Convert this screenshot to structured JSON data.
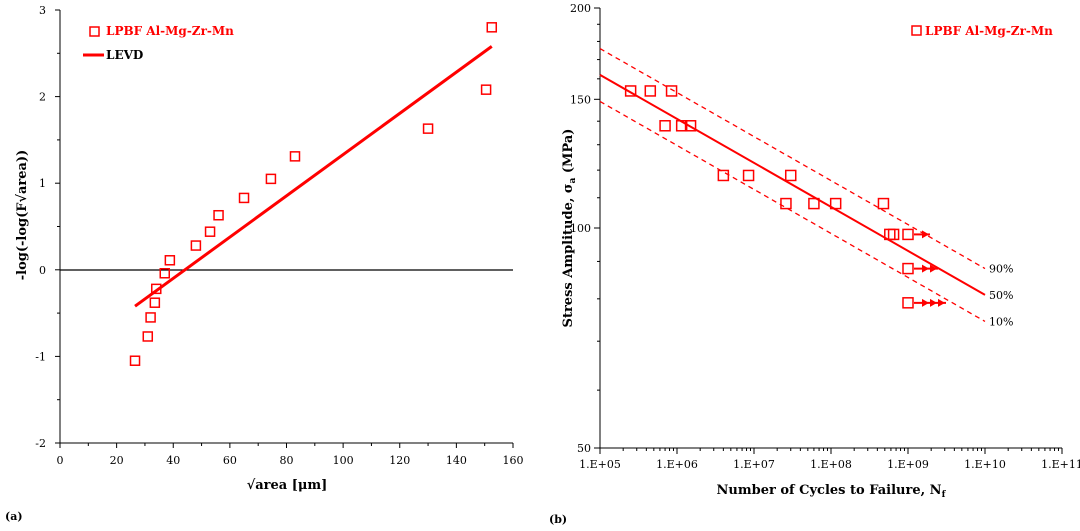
{
  "panels": {
    "a": "(a)",
    "b": "(b)"
  },
  "colors": {
    "series": "#ff0000",
    "axis": "#000000"
  },
  "chart_data": [
    {
      "type": "scatter",
      "xlabel": "√area [μm]",
      "ylabel": "-log(-log(F√area))",
      "xlim": [
        0,
        160
      ],
      "ylim": [
        -2,
        3
      ],
      "xticks": [
        0,
        20,
        40,
        60,
        80,
        100,
        120,
        140,
        160
      ],
      "yticks": [
        -2,
        -1,
        0,
        1,
        2,
        3
      ],
      "grid": false,
      "legend_position": "top-left",
      "series": [
        {
          "name": "LPBF Al-Mg-Zr-Mn",
          "marker": "open-square",
          "x": [
            26.5,
            31,
            32,
            33.5,
            34,
            37,
            38.8,
            48,
            53,
            56,
            65,
            74.5,
            83,
            130,
            150.5,
            152.5
          ],
          "y": [
            -1.05,
            -0.77,
            -0.55,
            -0.38,
            -0.22,
            -0.04,
            0.11,
            0.28,
            0.44,
            0.63,
            0.83,
            1.05,
            1.31,
            1.63,
            2.08,
            2.8
          ]
        },
        {
          "name": "LEVD",
          "line": true,
          "x": [
            26.5,
            152.5
          ],
          "y": [
            -0.42,
            2.58
          ]
        }
      ]
    },
    {
      "type": "scatter",
      "xlabel": "Number of Cycles to Failure, N",
      "xlabel_sub": "f",
      "ylabel": "Stress Amplitude, σ",
      "ylabel_sub": "a",
      "ylabel_unit": " (MPa)",
      "xscale": "log",
      "yscale": "log",
      "xlim": [
        100000,
        100000000000
      ],
      "ylim": [
        50,
        200
      ],
      "xtick_labels": [
        "1.E+05",
        "1.E+06",
        "1.E+07",
        "1.E+08",
        "1.E+09",
        "1.E+10",
        "1.E+11"
      ],
      "ytick_labels": [
        "50",
        "100",
        "150",
        "200"
      ],
      "grid": false,
      "legend_position": "top-right",
      "series": [
        {
          "name": "LPBF Al-Mg-Zr-Mn",
          "marker": "open-square",
          "x": [
            250000,
            450000,
            850000,
            700000,
            1150000,
            1500000,
            4000000,
            8500000,
            30000000,
            26000000,
            60000000,
            115000000,
            480000000,
            580000000,
            650000000,
            1000000000,
            1000000000,
            1000000000
          ],
          "y": [
            154,
            154,
            154,
            138,
            138,
            138,
            118,
            118,
            118,
            108,
            108,
            108,
            108,
            98,
            98,
            98,
            88,
            79
          ],
          "runout_arrows": [
            1,
            2,
            3
          ]
        }
      ],
      "bands": [
        {
          "label": "90%",
          "x": [
            100000,
            10000000000
          ],
          "y": [
            176,
            88
          ]
        },
        {
          "label": "50%",
          "x": [
            100000,
            10000000000
          ],
          "y": [
            162,
            81
          ]
        },
        {
          "label": "10%",
          "x": [
            100000,
            10000000000
          ],
          "y": [
            149,
            74.5
          ]
        }
      ]
    }
  ]
}
